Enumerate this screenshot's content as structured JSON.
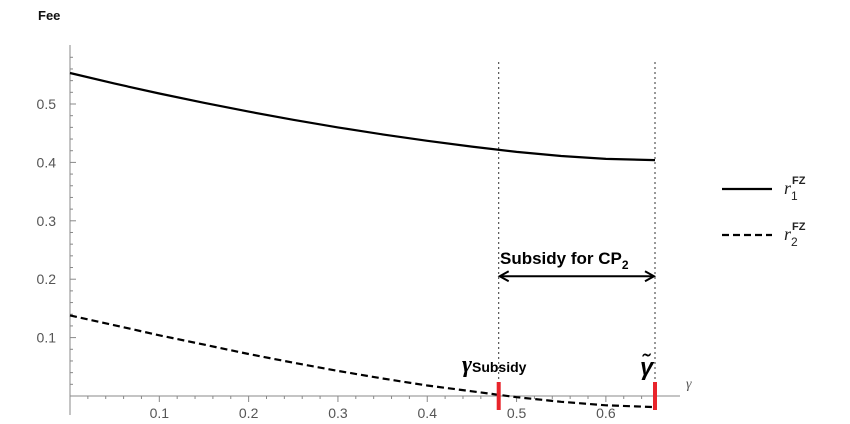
{
  "chart_data": {
    "type": "line",
    "ylabel": "Fee",
    "xlabel": "γ",
    "xlim": [
      0,
      0.655
    ],
    "ylim": [
      -0.02,
      0.6
    ],
    "x_ticks": [
      0.1,
      0.2,
      0.3,
      0.4,
      0.5,
      0.6
    ],
    "y_ticks": [
      0.1,
      0.2,
      0.3,
      0.4,
      0.5
    ],
    "grid": false,
    "legend_position": "right",
    "series": [
      {
        "name": "r1FZ",
        "name_base": "r",
        "name_sub": "1",
        "name_sup": "FZ",
        "style": "solid",
        "x": [
          0,
          0.05,
          0.1,
          0.15,
          0.2,
          0.25,
          0.3,
          0.35,
          0.4,
          0.45,
          0.5,
          0.55,
          0.6,
          0.655
        ],
        "y": [
          0.553,
          0.535,
          0.518,
          0.502,
          0.487,
          0.473,
          0.46,
          0.448,
          0.437,
          0.427,
          0.418,
          0.411,
          0.406,
          0.404
        ]
      },
      {
        "name": "r2FZ",
        "name_base": "r",
        "name_sub": "2",
        "name_sup": "FZ",
        "style": "dashed",
        "x": [
          0,
          0.05,
          0.1,
          0.15,
          0.2,
          0.25,
          0.3,
          0.35,
          0.4,
          0.45,
          0.5,
          0.55,
          0.6,
          0.655
        ],
        "y": [
          0.138,
          0.121,
          0.104,
          0.088,
          0.072,
          0.057,
          0.043,
          0.03,
          0.018,
          0.008,
          -0.002,
          -0.01,
          -0.016,
          -0.019
        ]
      }
    ],
    "vlines": [
      0.48,
      0.655
    ],
    "annotations": {
      "subsidy_label": "Subsidy for CP",
      "subsidy_sub": "2",
      "arrow_from": 0.48,
      "arrow_to": 0.655,
      "arrow_y": 0.205,
      "gamma_subsidy_symbol": "γ",
      "gamma_subsidy_sub": "Subsidy",
      "gamma_tilde_symbol": "γ̃"
    },
    "colors": {
      "line": "#000000",
      "marker": "#e8242b",
      "axis": "#888888"
    }
  }
}
